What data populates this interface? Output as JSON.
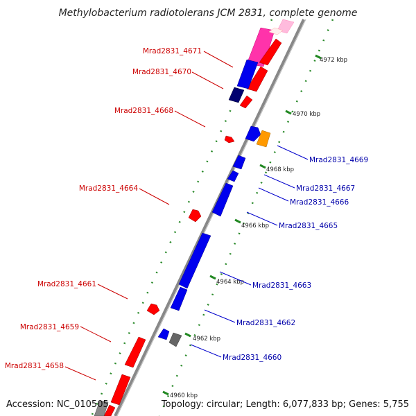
{
  "title": "Methylobacterium radiotolerans JCM 2831, complete genome",
  "footer": {
    "accession": "Accession: NC_010505",
    "summary": "Topology: circular; Length: 6,077,833 bp; Genes: 5,755"
  },
  "colors": {
    "red": "#ff0000",
    "blue": "#0000ff",
    "navy": "#000070",
    "orange": "#ff9900",
    "magenta": "#ff33aa",
    "pink": "#ffbbdd",
    "gray": "#666666",
    "label_left": "#cc0000",
    "label_right": "#0000aa",
    "tick_green": "#228822"
  },
  "ticks": [
    {
      "kbp": 4972,
      "label": "4972 kbp"
    },
    {
      "kbp": 4970,
      "label": "4970 kbp"
    },
    {
      "kbp": 4968,
      "label": "4968 kbp"
    },
    {
      "kbp": 4966,
      "label": "4966 kbp"
    },
    {
      "kbp": 4964,
      "label": "4964 kbp"
    },
    {
      "kbp": 4962,
      "label": "4962 kbp"
    },
    {
      "kbp": 4960,
      "label": "4960 kbp"
    }
  ],
  "genes_left": [
    {
      "label": "Mrad2831_4671"
    },
    {
      "label": "Mrad2831_4670"
    },
    {
      "label": "Mrad2831_4668"
    },
    {
      "label": "Mrad2831_4664"
    },
    {
      "label": "Mrad2831_4661"
    },
    {
      "label": "Mrad2831_4659"
    },
    {
      "label": "Mrad2831_4658"
    }
  ],
  "genes_right": [
    {
      "label": "Mrad2831_4669"
    },
    {
      "label": "Mrad2831_4667"
    },
    {
      "label": "Mrad2831_4666"
    },
    {
      "label": "Mrad2831_4665"
    },
    {
      "label": "Mrad2831_4663"
    },
    {
      "label": "Mrad2831_4662"
    },
    {
      "label": "Mrad2831_4660"
    }
  ]
}
